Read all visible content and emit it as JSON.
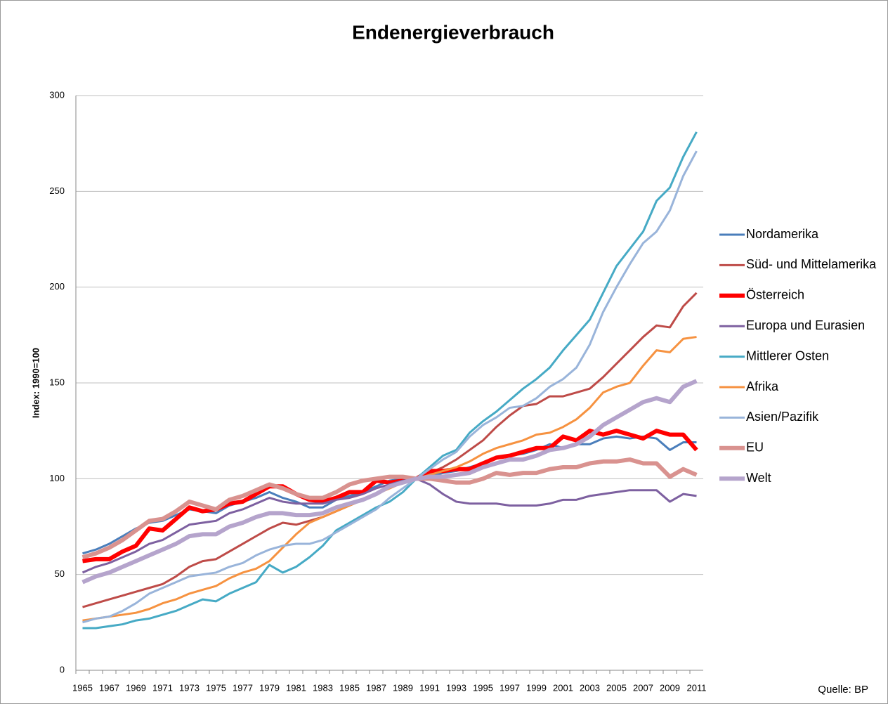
{
  "chart_data": {
    "type": "line",
    "title": "Endenergieverbrauch",
    "y_label": "Index: 1990=100",
    "source": "Quelle: BP",
    "categories": [
      "1965",
      null,
      "1967",
      null,
      "1969",
      null,
      "1971",
      null,
      "1973",
      null,
      "1975",
      null,
      "1977",
      null,
      "1979",
      null,
      "1981",
      null,
      "1983",
      null,
      "1985",
      null,
      "1987",
      null,
      "1989",
      null,
      "1991",
      null,
      "1993",
      null,
      "1995",
      null,
      "1997",
      null,
      "1999",
      null,
      "2001",
      null,
      "2003",
      null,
      "2005",
      null,
      "2007",
      null,
      "2009",
      null,
      "2011"
    ],
    "ylim": [
      0,
      300
    ],
    "yticks": [
      0,
      50,
      100,
      150,
      200,
      250,
      300
    ],
    "grid": true,
    "legend": "right",
    "series": [
      {
        "name": "Nordamerika",
        "color": "#4a7ebb",
        "linewidth": 3,
        "values": [
          61,
          63,
          66,
          70,
          74,
          77,
          78,
          81,
          84,
          83,
          82,
          86,
          88,
          90,
          93,
          90,
          88,
          85,
          85,
          89,
          91,
          93,
          96,
          99,
          100,
          100,
          101,
          103,
          104,
          106,
          108,
          111,
          112,
          113,
          115,
          118,
          116,
          118,
          118,
          121,
          122,
          121,
          122,
          121,
          115,
          119,
          119
        ]
      },
      {
        "name": "Süd- und Mittelamerika",
        "color": "#be4b48",
        "linewidth": 3,
        "values": [
          33,
          35,
          37,
          39,
          41,
          43,
          45,
          49,
          54,
          57,
          58,
          62,
          66,
          70,
          74,
          77,
          76,
          78,
          80,
          83,
          86,
          89,
          92,
          95,
          98,
          100,
          103,
          106,
          110,
          115,
          120,
          127,
          133,
          138,
          139,
          143,
          143,
          145,
          147,
          153,
          160,
          167,
          174,
          180,
          179,
          190,
          197
        ]
      },
      {
        "name": "Österreich",
        "color": "#ff0000",
        "linewidth": 6,
        "values": [
          57,
          58,
          58,
          62,
          65,
          74,
          73,
          79,
          85,
          83,
          84,
          87,
          88,
          92,
          96,
          96,
          92,
          89,
          88,
          90,
          93,
          93,
          99,
          98,
          99,
          100,
          104,
          104,
          105,
          105,
          108,
          111,
          112,
          114,
          116,
          116,
          122,
          120,
          125,
          123,
          125,
          123,
          121,
          125,
          123,
          123,
          115
        ]
      },
      {
        "name": "Europa und Eurasien",
        "color": "#7d60a0",
        "linewidth": 3,
        "values": [
          51,
          54,
          56,
          59,
          62,
          66,
          68,
          72,
          76,
          77,
          78,
          82,
          84,
          87,
          90,
          88,
          87,
          87,
          87,
          89,
          90,
          92,
          95,
          97,
          99,
          100,
          97,
          92,
          88,
          87,
          87,
          87,
          86,
          86,
          86,
          87,
          89,
          89,
          91,
          92,
          93,
          94,
          94,
          94,
          88,
          92,
          91
        ]
      },
      {
        "name": "Mittlerer Osten",
        "color": "#46aac5",
        "linewidth": 3,
        "values": [
          22,
          22,
          23,
          24,
          26,
          27,
          29,
          31,
          34,
          37,
          36,
          40,
          43,
          46,
          55,
          51,
          54,
          59,
          65,
          73,
          77,
          81,
          85,
          88,
          93,
          100,
          106,
          112,
          115,
          124,
          130,
          135,
          141,
          147,
          152,
          158,
          167,
          175,
          183,
          197,
          211,
          220,
          229,
          245,
          252,
          268,
          281
        ]
      },
      {
        "name": "Afrika",
        "color": "#f69240",
        "linewidth": 3,
        "values": [
          26,
          27,
          28,
          29,
          30,
          32,
          35,
          37,
          40,
          42,
          44,
          48,
          51,
          53,
          57,
          64,
          71,
          77,
          80,
          83,
          86,
          89,
          92,
          95,
          98,
          100,
          102,
          104,
          106,
          109,
          113,
          116,
          118,
          120,
          123,
          124,
          127,
          131,
          137,
          145,
          148,
          150,
          159,
          167,
          166,
          173,
          174
        ]
      },
      {
        "name": "Asien/Pazifik",
        "color": "#99b4da",
        "linewidth": 3,
        "values": [
          25,
          27,
          28,
          31,
          35,
          40,
          43,
          46,
          49,
          50,
          51,
          54,
          56,
          60,
          63,
          65,
          66,
          66,
          68,
          72,
          76,
          80,
          84,
          90,
          95,
          100,
          105,
          110,
          114,
          122,
          128,
          132,
          137,
          138,
          142,
          148,
          152,
          158,
          170,
          187,
          200,
          212,
          223,
          229,
          240,
          258,
          271
        ]
      },
      {
        "name": "EU",
        "color": "#d9928f",
        "linewidth": 6,
        "values": [
          59,
          61,
          64,
          68,
          73,
          78,
          79,
          83,
          88,
          86,
          84,
          89,
          91,
          94,
          97,
          95,
          92,
          90,
          90,
          93,
          97,
          99,
          100,
          101,
          101,
          100,
          100,
          99,
          98,
          98,
          100,
          103,
          102,
          103,
          103,
          105,
          106,
          106,
          108,
          109,
          109,
          110,
          108,
          108,
          101,
          105,
          102
        ]
      },
      {
        "name": "Welt",
        "color": "#b5a4cc",
        "linewidth": 6,
        "values": [
          46,
          49,
          51,
          54,
          57,
          60,
          63,
          66,
          70,
          71,
          71,
          75,
          77,
          80,
          82,
          82,
          81,
          81,
          82,
          85,
          87,
          89,
          92,
          96,
          98,
          100,
          101,
          101,
          102,
          103,
          106,
          108,
          110,
          110,
          112,
          115,
          116,
          118,
          122,
          128,
          132,
          136,
          140,
          142,
          140,
          148,
          151
        ]
      }
    ]
  }
}
